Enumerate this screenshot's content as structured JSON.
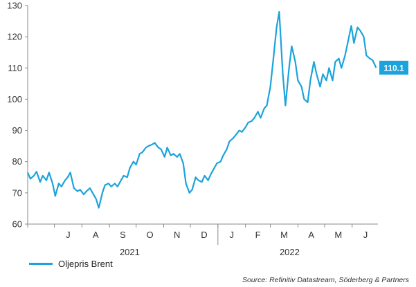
{
  "colors": {
    "line": "#1aa3dc",
    "end_label_bg": "#1aa3dc",
    "axis": "#8a8a8a"
  },
  "legend": {
    "label": "Oljepris Brent"
  },
  "source": "Source: Refinitiv Datastream, Söderberg & Partners",
  "chart_data": {
    "type": "line",
    "title": "",
    "xlabel": "",
    "ylabel": "",
    "ylim": [
      60,
      130
    ],
    "yticks": [
      60,
      70,
      80,
      90,
      100,
      110,
      120,
      130
    ],
    "xlim": [
      "2021-06-01",
      "2022-06-30"
    ],
    "x_tick_labels": [
      "J",
      "A",
      "S",
      "O",
      "N",
      "D",
      "J",
      "F",
      "M",
      "A",
      "M",
      "J"
    ],
    "year_labels": [
      "2021",
      "2022"
    ],
    "grid": false,
    "legend_position": "bottom-left",
    "end_label": "110.1",
    "series": [
      {
        "name": "Oljepris Brent",
        "x": [
          "2021-06-01",
          "2021-06-04",
          "2021-06-08",
          "2021-06-11",
          "2021-06-15",
          "2021-06-18",
          "2021-06-22",
          "2021-06-25",
          "2021-06-29",
          "2021-07-02",
          "2021-07-06",
          "2021-07-09",
          "2021-07-13",
          "2021-07-16",
          "2021-07-19",
          "2021-07-23",
          "2021-07-27",
          "2021-07-30",
          "2021-08-03",
          "2021-08-06",
          "2021-08-10",
          "2021-08-13",
          "2021-08-17",
          "2021-08-20",
          "2021-08-24",
          "2021-08-27",
          "2021-08-31",
          "2021-09-03",
          "2021-09-07",
          "2021-09-10",
          "2021-09-14",
          "2021-09-17",
          "2021-09-21",
          "2021-09-24",
          "2021-09-28",
          "2021-10-01",
          "2021-10-05",
          "2021-10-08",
          "2021-10-12",
          "2021-10-15",
          "2021-10-19",
          "2021-10-22",
          "2021-10-26",
          "2021-10-29",
          "2021-11-02",
          "2021-11-05",
          "2021-11-09",
          "2021-11-12",
          "2021-11-16",
          "2021-11-19",
          "2021-11-23",
          "2021-11-26",
          "2021-11-30",
          "2021-12-03",
          "2021-12-07",
          "2021-12-10",
          "2021-12-14",
          "2021-12-17",
          "2021-12-21",
          "2021-12-24",
          "2021-12-28",
          "2021-12-31",
          "2022-01-04",
          "2022-01-07",
          "2022-01-11",
          "2022-01-14",
          "2022-01-18",
          "2022-01-21",
          "2022-01-25",
          "2022-01-28",
          "2022-02-01",
          "2022-02-04",
          "2022-02-08",
          "2022-02-11",
          "2022-02-15",
          "2022-02-18",
          "2022-02-22",
          "2022-02-25",
          "2022-03-01",
          "2022-03-04",
          "2022-03-08",
          "2022-03-11",
          "2022-03-15",
          "2022-03-18",
          "2022-03-22",
          "2022-03-25",
          "2022-03-29",
          "2022-04-01",
          "2022-04-05",
          "2022-04-08",
          "2022-04-12",
          "2022-04-15",
          "2022-04-19",
          "2022-04-22",
          "2022-04-26",
          "2022-04-29",
          "2022-05-03",
          "2022-05-06",
          "2022-05-10",
          "2022-05-13",
          "2022-05-17",
          "2022-05-20",
          "2022-05-24",
          "2022-05-27",
          "2022-05-31",
          "2022-06-03",
          "2022-06-07",
          "2022-06-10",
          "2022-06-14",
          "2022-06-17",
          "2022-06-21",
          "2022-06-24",
          "2022-06-28"
        ],
        "values": [
          76.5,
          74.5,
          75.5,
          76.8,
          73.5,
          75.5,
          74.0,
          76.5,
          73.0,
          69.0,
          73.0,
          72.0,
          74.0,
          75.0,
          76.5,
          71.5,
          70.5,
          71.0,
          69.5,
          70.5,
          71.5,
          70.0,
          68.0,
          65.2,
          70.0,
          72.5,
          73.0,
          72.0,
          73.0,
          72.0,
          74.0,
          75.5,
          75.0,
          78.0,
          80.0,
          79.0,
          82.5,
          83.0,
          84.5,
          85.0,
          85.5,
          86.0,
          84.5,
          84.0,
          81.5,
          84.5,
          82.0,
          82.5,
          81.5,
          82.5,
          79.5,
          73.0,
          70.0,
          71.0,
          75.0,
          74.0,
          73.5,
          75.5,
          74.0,
          76.0,
          78.0,
          79.5,
          80.0,
          82.0,
          84.0,
          86.5,
          87.5,
          88.5,
          90.0,
          89.5,
          91.0,
          92.5,
          93.0,
          94.0,
          96.0,
          94.0,
          97.0,
          98.0,
          104.0,
          112.0,
          123.0,
          128.0,
          108.0,
          98.0,
          110.0,
          117.0,
          112.0,
          106.0,
          104.0,
          100.0,
          99.0,
          106.0,
          112.0,
          108.0,
          104.0,
          108.0,
          106.0,
          110.0,
          106.0,
          112.0,
          113.0,
          110.0,
          114.0,
          118.0,
          123.5,
          118.0,
          123.0,
          122.0,
          120.0,
          114.0,
          113.0,
          112.5,
          110.1
        ]
      }
    ]
  }
}
